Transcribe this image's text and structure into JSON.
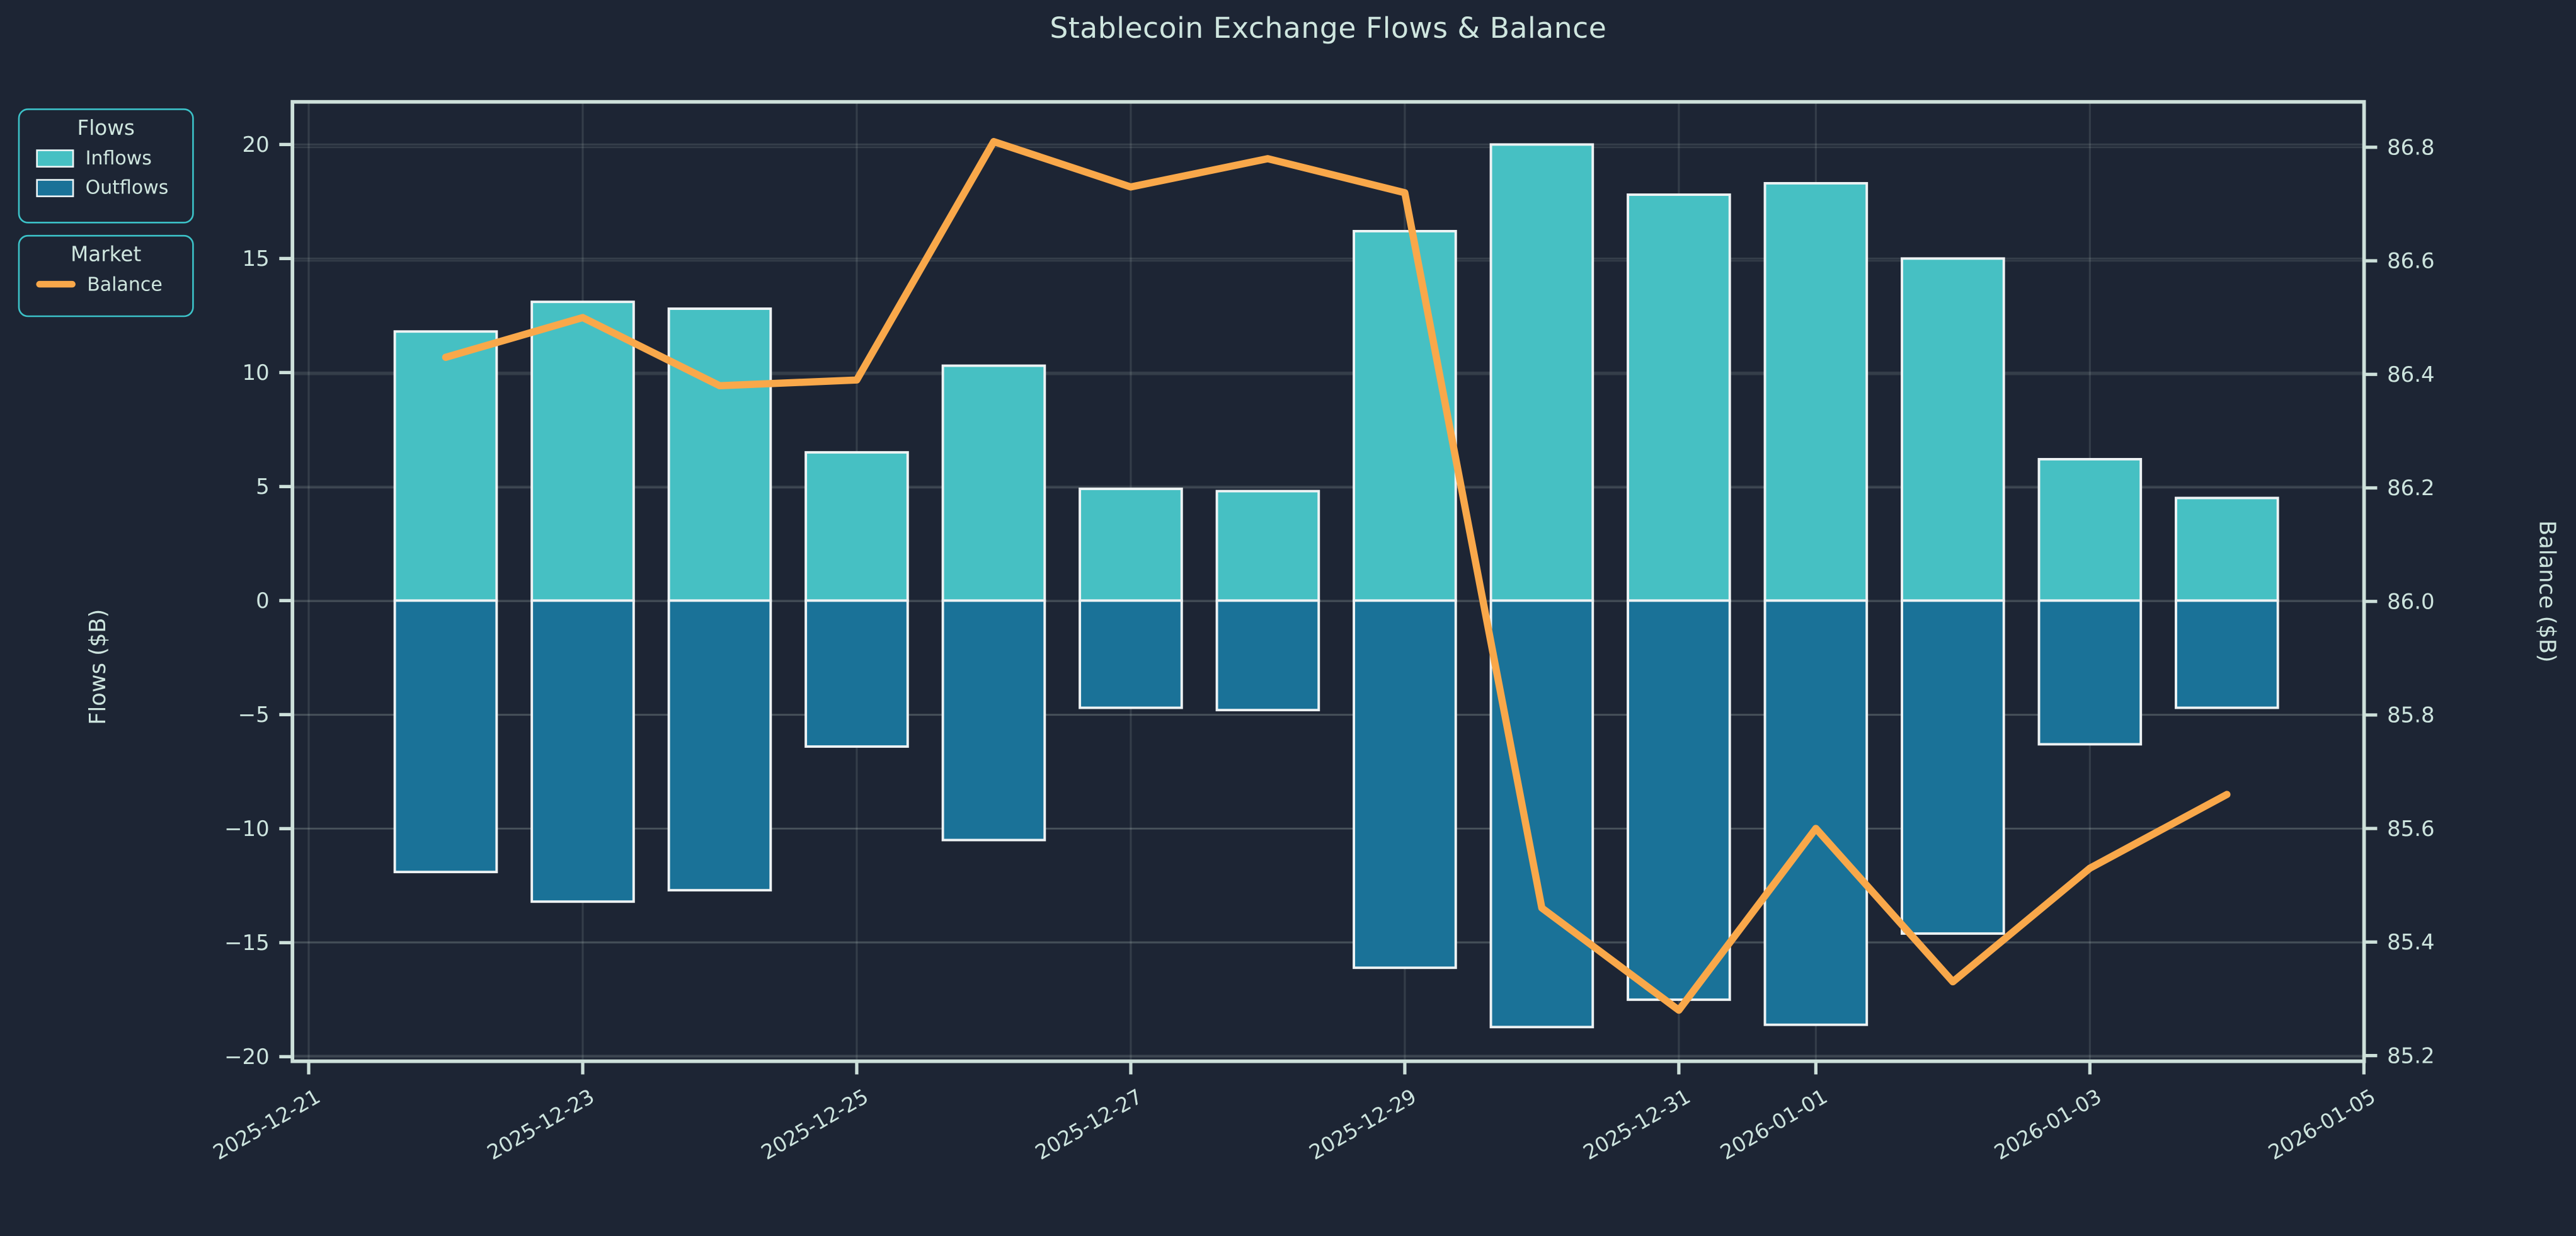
{
  "title": "Stablecoin Exchange Flows & Balance",
  "legend_flows": {
    "title": "Flows",
    "items": [
      {
        "label": "Inflows",
        "color": "#46c0c3"
      },
      {
        "label": "Outflows",
        "color": "#1a7298"
      }
    ]
  },
  "legend_market": {
    "title": "Market",
    "items": [
      {
        "label": "Balance",
        "color": "#f9a84a"
      }
    ]
  },
  "colors": {
    "background": "#1d2534",
    "text": "#cfe6df",
    "tick_text": "#cde4de",
    "spine": "#cde0da",
    "grid": "rgba(205,224,218,0.13)",
    "bar_edge": "#eef3f4",
    "inflow": "#46c0c3",
    "outflow": "#1a7298",
    "balance_line": "#f9a84a"
  },
  "chart_data": {
    "type": "bar",
    "title": "Stablecoin Exchange Flows & Balance",
    "ylabel_left": "Flows ($B)",
    "ylabel_right": "Balance ($B)",
    "categories": [
      "2025-12-22",
      "2025-12-23",
      "2025-12-24",
      "2025-12-25",
      "2025-12-26",
      "2025-12-27",
      "2025-12-28",
      "2025-12-29",
      "2025-12-30",
      "2025-12-31",
      "2026-01-01",
      "2026-01-02",
      "2026-01-03",
      "2026-01-04"
    ],
    "x_day_offsets": [
      1,
      2,
      3,
      4,
      5,
      6,
      7,
      8,
      9,
      10,
      11,
      12,
      13,
      14
    ],
    "series": [
      {
        "name": "Inflows",
        "type": "bar",
        "axis": "left",
        "values": [
          11.8,
          13.1,
          12.8,
          6.5,
          10.3,
          4.9,
          4.8,
          16.2,
          20.0,
          17.8,
          18.3,
          15.0,
          6.2,
          4.5
        ]
      },
      {
        "name": "Outflows",
        "type": "bar",
        "axis": "left",
        "values": [
          -11.9,
          -13.2,
          -12.7,
          -6.4,
          -10.5,
          -4.7,
          -4.8,
          -16.1,
          -18.7,
          -17.5,
          -18.6,
          -14.6,
          -6.3,
          -4.7
        ]
      },
      {
        "name": "Balance",
        "type": "line",
        "axis": "right",
        "values": [
          86.43,
          86.5,
          86.38,
          86.39,
          86.81,
          86.73,
          86.78,
          86.72,
          85.46,
          85.28,
          85.6,
          85.33,
          85.53,
          85.66
        ]
      }
    ],
    "xticks": [
      {
        "label": "2025-12-21",
        "d": 0
      },
      {
        "label": "2025-12-23",
        "d": 2
      },
      {
        "label": "2025-12-25",
        "d": 4
      },
      {
        "label": "2025-12-27",
        "d": 6
      },
      {
        "label": "2025-12-29",
        "d": 8
      },
      {
        "label": "2025-12-31",
        "d": 10
      },
      {
        "label": "2026-01-01",
        "d": 11
      },
      {
        "label": "2026-01-03",
        "d": 13
      },
      {
        "label": "2026-01-05",
        "d": 15
      }
    ],
    "yticks_left": [
      20,
      15,
      10,
      5,
      0,
      -5,
      -10,
      -15,
      -20
    ],
    "yticks_right": [
      86.8,
      86.6,
      86.4,
      86.2,
      86.0,
      85.8,
      85.6,
      85.4,
      85.2
    ],
    "ylim_left": [
      -20.2,
      21.87
    ],
    "ylim_right": [
      85.19,
      86.88
    ],
    "grid": true,
    "legend_position": "outside-left",
    "xtick_rotation_deg": 30
  }
}
